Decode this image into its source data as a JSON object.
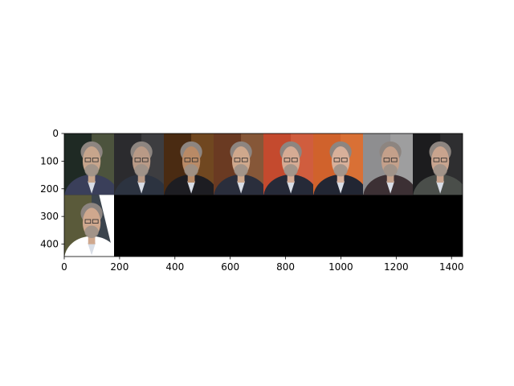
{
  "chart_data": {
    "type": "image-grid",
    "title": "",
    "xlabel": "",
    "ylabel": "",
    "xlim": [
      0,
      1440
    ],
    "ylim": [
      445,
      0
    ],
    "x_ticks": [
      0,
      200,
      400,
      600,
      800,
      1000,
      1200,
      1400
    ],
    "y_ticks": [
      0,
      100,
      200,
      300,
      400
    ],
    "grid": false,
    "background_color": "#000000",
    "tiles": [
      {
        "row": 0,
        "col": 0,
        "x0": 0,
        "x1": 180,
        "y0": 0,
        "y1": 222,
        "tones": [
          "#1f2a24",
          "#6b6f4f",
          "#c7a58c",
          "#3a3f5a"
        ]
      },
      {
        "row": 0,
        "col": 1,
        "x0": 180,
        "x1": 360,
        "y0": 0,
        "y1": 222,
        "tones": [
          "#2b2b2e",
          "#4a4a4d",
          "#b99a86",
          "#2c3340"
        ]
      },
      {
        "row": 0,
        "col": 2,
        "x0": 360,
        "x1": 540,
        "y0": 0,
        "y1": 222,
        "tones": [
          "#4a2b12",
          "#8a5a2a",
          "#b98a66",
          "#1d1d22"
        ]
      },
      {
        "row": 0,
        "col": 3,
        "x0": 540,
        "x1": 720,
        "y0": 0,
        "y1": 222,
        "tones": [
          "#6a3a22",
          "#9a6a48",
          "#cfa88c",
          "#2a2e3c"
        ]
      },
      {
        "row": 0,
        "col": 4,
        "x0": 720,
        "x1": 900,
        "y0": 0,
        "y1": 222,
        "tones": [
          "#c44a2e",
          "#d86a4a",
          "#d6ab94",
          "#262a38"
        ]
      },
      {
        "row": 0,
        "col": 5,
        "x0": 900,
        "x1": 1080,
        "y0": 0,
        "y1": 222,
        "tones": [
          "#d0622c",
          "#e07a3c",
          "#d8b09a",
          "#222633"
        ]
      },
      {
        "row": 0,
        "col": 6,
        "x0": 1080,
        "x1": 1260,
        "y0": 0,
        "y1": 222,
        "tones": [
          "#8e8e90",
          "#a8a8aa",
          "#c4a08a",
          "#3c3034"
        ]
      },
      {
        "row": 0,
        "col": 7,
        "x0": 1260,
        "x1": 1440,
        "y0": 0,
        "y1": 222,
        "tones": [
          "#1c1c1e",
          "#3a3a3c",
          "#c9a48e",
          "#4a4e4a"
        ]
      },
      {
        "row": 1,
        "col": 0,
        "x0": 0,
        "x1": 180,
        "y0": 222,
        "y1": 445,
        "tones": [
          "#5a5a3a",
          "#26365a",
          "#cfa88e",
          "#ffffff"
        ]
      }
    ]
  }
}
